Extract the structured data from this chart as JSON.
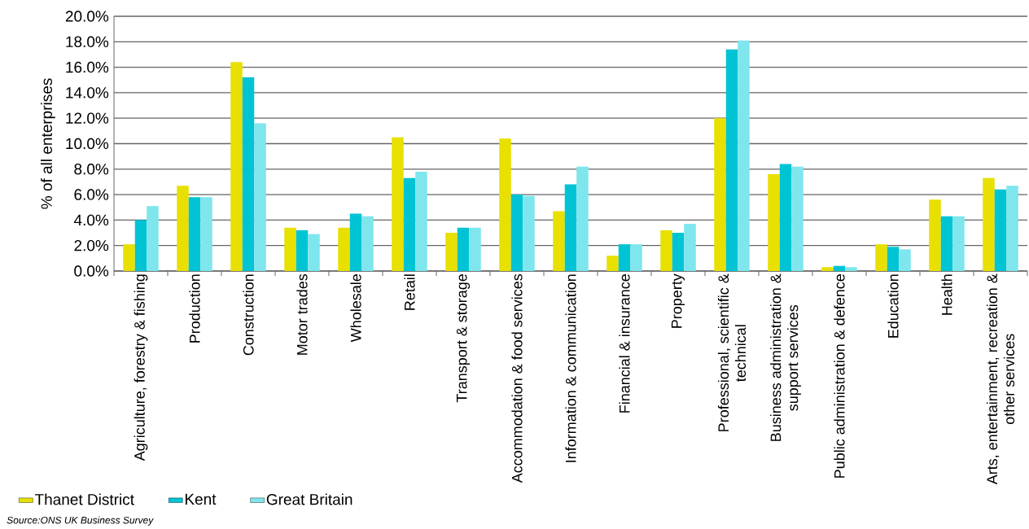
{
  "chart_data": {
    "type": "bar",
    "ylabel": "% of all enterprises",
    "categories": [
      "Agriculture, forestry & fishing",
      "Production",
      "Construction",
      "Motor trades",
      "Wholesale",
      "Retail",
      "Transport & storage",
      "Accommodation & food services",
      "Information & communication",
      "Financial & insurance",
      "Property",
      "Professional, scientific & technical",
      "Business administration & support services",
      "Public administration & defence",
      "Education",
      "Health",
      "Arts, entertainment, recreation & other services"
    ],
    "series": [
      {
        "name": "Thanet District",
        "color": "#e8e000",
        "values": [
          2.1,
          6.7,
          16.4,
          3.4,
          3.4,
          10.5,
          3.0,
          10.4,
          4.7,
          1.2,
          3.2,
          12.0,
          7.6,
          0.3,
          2.1,
          5.6,
          7.3
        ]
      },
      {
        "name": "Kent",
        "color": "#00c4d4",
        "values": [
          4.0,
          5.8,
          15.2,
          3.2,
          4.5,
          7.3,
          3.4,
          6.0,
          6.8,
          2.1,
          3.0,
          17.4,
          8.4,
          0.4,
          1.9,
          4.3,
          6.4
        ]
      },
      {
        "name": "Great Britain",
        "color": "#7ee6ec",
        "values": [
          5.1,
          5.8,
          11.6,
          2.9,
          4.3,
          7.8,
          3.4,
          5.9,
          8.2,
          2.1,
          3.7,
          18.1,
          8.2,
          0.3,
          1.7,
          4.3,
          6.7
        ]
      }
    ],
    "ylim": [
      0,
      20
    ],
    "yticks": [
      {
        "value": 0,
        "label": "0.0%"
      },
      {
        "value": 2,
        "label": "2.0%"
      },
      {
        "value": 4,
        "label": "4.0%"
      },
      {
        "value": 6,
        "label": "6.0%"
      },
      {
        "value": 8,
        "label": "8.0%"
      },
      {
        "value": 10,
        "label": "10.0%"
      },
      {
        "value": 12,
        "label": "12.0%"
      },
      {
        "value": 14,
        "label": "14.0%"
      },
      {
        "value": 16,
        "label": "16.0%"
      },
      {
        "value": 18,
        "label": "18.0%"
      },
      {
        "value": 20,
        "label": "20.0%"
      }
    ],
    "grid": "y",
    "legend": "bottom left",
    "annotations": [
      "Source:ONS UK Business Survey"
    ]
  }
}
